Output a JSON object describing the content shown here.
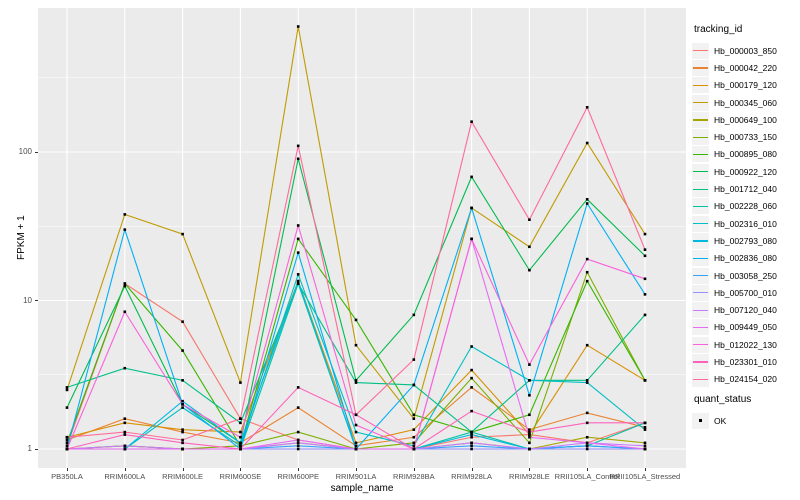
{
  "chart_data": {
    "type": "line",
    "title": "",
    "xlabel": "sample_name",
    "ylabel": "FPKM + 1",
    "y_scale": "log10",
    "y_major_ticks": [
      1,
      10,
      100
    ],
    "y_minor_gridlines": [
      3.162,
      31.62,
      316.2
    ],
    "ylim_log": [
      -0.143,
      2.99
    ],
    "grid": true,
    "panel_background": "#EBEBEB",
    "gridline_color": "#FFFFFF",
    "point_color": "#000000",
    "categories": [
      "PB350LA",
      "RRIM600LA",
      "RRIM600LE",
      "RRIM600SE",
      "RRIM600PE",
      "RRIM901LA",
      "RRIM928BA",
      "RRIM928LA",
      "RRIM928LE",
      "RRII105LA_Control",
      "RRII105LA_Stressed"
    ],
    "series": [
      {
        "name": "Hb_000003_850",
        "color": "#F8766D",
        "values": [
          1.05,
          13,
          7.2,
          1.6,
          1.15,
          1.0,
          1.0,
          1.2,
          1.25,
          1.1,
          1.5
        ]
      },
      {
        "name": "Hb_000042_220",
        "color": "#EA8331",
        "values": [
          1.15,
          1.6,
          1.3,
          1.1,
          1.9,
          1.05,
          1.2,
          2.6,
          1.35,
          1.75,
          1.4
        ]
      },
      {
        "name": "Hb_000179_120",
        "color": "#D89000",
        "values": [
          1.2,
          1.5,
          1.35,
          1.3,
          13.5,
          1.1,
          1.35,
          3.4,
          1.25,
          5.0,
          2.9
        ]
      },
      {
        "name": "Hb_000345_060",
        "color": "#C09B00",
        "values": [
          2.5,
          38,
          28,
          2.8,
          700,
          5.0,
          1.6,
          42,
          23,
          115,
          28
        ]
      },
      {
        "name": "Hb_000649_100",
        "color": "#A3A500",
        "values": [
          1.0,
          1.05,
          1.0,
          1.0,
          1.1,
          1.0,
          1.0,
          1.1,
          1.0,
          1.2,
          1.1
        ]
      },
      {
        "name": "Hb_000733_150",
        "color": "#7CAE00",
        "values": [
          1.0,
          1.05,
          1.0,
          1.05,
          1.3,
          1.0,
          1.1,
          3.0,
          1.1,
          15.5,
          2.9
        ]
      },
      {
        "name": "Hb_000895_080",
        "color": "#39B600",
        "values": [
          1.1,
          13,
          4.6,
          1.05,
          26,
          7.4,
          1.7,
          1.3,
          1.7,
          13.5,
          2.9
        ]
      },
      {
        "name": "Hb_000922_120",
        "color": "#00BB4E",
        "values": [
          1.9,
          12.5,
          2.0,
          1.1,
          90,
          2.9,
          8.0,
          68,
          16,
          48,
          20
        ]
      },
      {
        "name": "Hb_001712_040",
        "color": "#00C087",
        "values": [
          2.6,
          3.5,
          2.9,
          1.5,
          13,
          2.8,
          2.7,
          1.3,
          2.9,
          2.9,
          8.0
        ]
      },
      {
        "name": "Hb_002228_060",
        "color": "#00C1A3",
        "values": [
          1.0,
          1.0,
          1.0,
          1.0,
          13,
          1.0,
          1.0,
          1.3,
          1.0,
          1.05,
          1.5
        ]
      },
      {
        "name": "Hb_002316_010",
        "color": "#00BFC4",
        "values": [
          1.0,
          1.0,
          1.9,
          1.05,
          15,
          1.3,
          1.05,
          4.9,
          2.9,
          2.8,
          1.35
        ]
      },
      {
        "name": "Hb_002793_080",
        "color": "#00BAE0",
        "values": [
          1.0,
          1.0,
          2.1,
          1.1,
          13.5,
          1.0,
          1.0,
          1.25,
          1.0,
          1.05,
          1.0
        ]
      },
      {
        "name": "Hb_002836_080",
        "color": "#00B0F6",
        "values": [
          1.0,
          30,
          2.0,
          1.0,
          21,
          1.0,
          2.7,
          42,
          2.3,
          45,
          11
        ]
      },
      {
        "name": "Hb_003058_250",
        "color": "#35A2FF",
        "values": [
          1.0,
          1.0,
          1.0,
          1.0,
          1.05,
          1.0,
          1.0,
          1.05,
          1.0,
          1.05,
          1.0
        ]
      },
      {
        "name": "Hb_005700_010",
        "color": "#9590FF",
        "values": [
          1.0,
          1.0,
          1.0,
          1.0,
          1.0,
          1.0,
          1.0,
          1.0,
          1.0,
          1.0,
          1.0
        ]
      },
      {
        "name": "Hb_007120_040",
        "color": "#C77CFF",
        "values": [
          1.0,
          1.05,
          1.0,
          1.0,
          1.1,
          1.0,
          1.0,
          1.1,
          1.0,
          1.1,
          1.05
        ]
      },
      {
        "name": "Hb_009449_050",
        "color": "#E76BF3",
        "values": [
          1.0,
          1.0,
          1.0,
          1.0,
          1.15,
          1.0,
          1.0,
          26,
          1.2,
          1.1,
          1.0
        ]
      },
      {
        "name": "Hb_012022_130",
        "color": "#FA62DB",
        "values": [
          1.0,
          8.4,
          2.0,
          1.2,
          32,
          1.45,
          1.0,
          26,
          3.7,
          19,
          14
        ]
      },
      {
        "name": "Hb_023301_010",
        "color": "#FF62BC",
        "values": [
          1.0,
          1.25,
          1.1,
          1.0,
          2.6,
          1.7,
          1.0,
          1.8,
          1.3,
          1.5,
          1.5
        ]
      },
      {
        "name": "Hb_024154_020",
        "color": "#FF6A98",
        "values": [
          1.2,
          1.3,
          1.15,
          1.6,
          110,
          1.7,
          4.0,
          160,
          35,
          200,
          22
        ]
      }
    ],
    "legend": {
      "title": "tracking_id",
      "position": "right"
    },
    "legend2": {
      "title": "quant_status",
      "items": [
        {
          "label": "OK",
          "key": "black-square-point"
        }
      ]
    }
  }
}
